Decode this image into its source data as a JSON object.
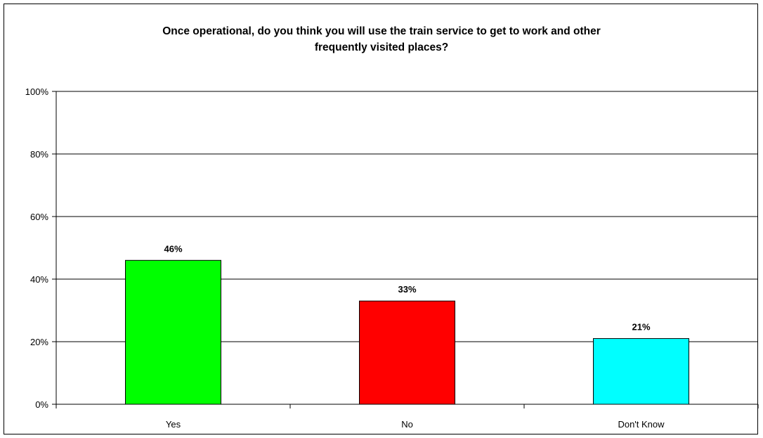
{
  "chart_data": {
    "type": "bar",
    "title_lines": [
      "Once operational, do you think you will use the train service to get to work and other",
      "frequently visited places?"
    ],
    "categories": [
      "Yes",
      "No",
      "Don't Know"
    ],
    "values": [
      46,
      33,
      21
    ],
    "value_labels": [
      "46%",
      "33%",
      "21%"
    ],
    "y_ticks": [
      "0%",
      "20%",
      "40%",
      "60%",
      "80%",
      "100%"
    ],
    "ylim": [
      0,
      100
    ],
    "colors": [
      "#00ff00",
      "#ff0000",
      "#00ffff"
    ],
    "grid": true,
    "legend": "none"
  }
}
